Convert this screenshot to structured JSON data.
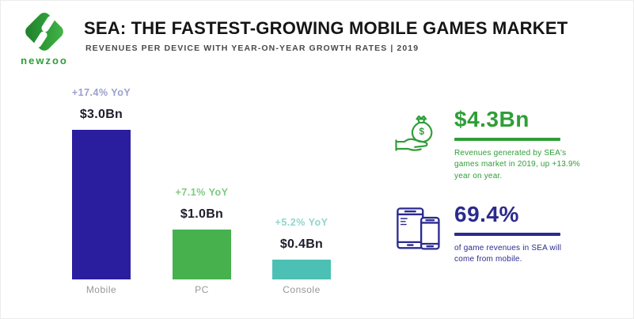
{
  "brand": {
    "name": "newzoo",
    "accent": "#2f9e38"
  },
  "header": {
    "title": "SEA: THE FASTEST-GROWING MOBILE GAMES MARKET",
    "subtitle": "REVENUES PER DEVICE WITH YEAR-ON-YEAR GROWTH RATES | 2019"
  },
  "chart_data": {
    "type": "bar",
    "title": "Revenues per device with year-on-year growth rates | 2019",
    "categories": [
      "Mobile",
      "PC",
      "Console"
    ],
    "values": [
      3.0,
      1.0,
      0.4
    ],
    "unit": "USD billions",
    "value_labels": [
      "$3.0Bn",
      "$1.0Bn",
      "$0.4Bn"
    ],
    "growth_labels": [
      "+17.4% YoY",
      "+7.1% YoY",
      "+5.2% YoY"
    ],
    "bar_colors": [
      "#2b1e9e",
      "#47b14e",
      "#4cc0b4"
    ],
    "growth_label_colors": [
      "#9aa0cd",
      "#7fc983",
      "#93d5cd"
    ],
    "ylim": [
      0,
      3.0
    ],
    "grid": false,
    "legend": false
  },
  "stats": [
    {
      "icon": "money-bag-hand-icon",
      "value": "$4.3Bn",
      "description": "Revenues generated by SEA's games market in 2019, up +13.9% year on year.",
      "accent": "#2f9e38"
    },
    {
      "icon": "mobile-devices-icon",
      "value": "69.4%",
      "description": "of game revenues in SEA will come from mobile.",
      "accent": "#2b2a8f"
    }
  ]
}
